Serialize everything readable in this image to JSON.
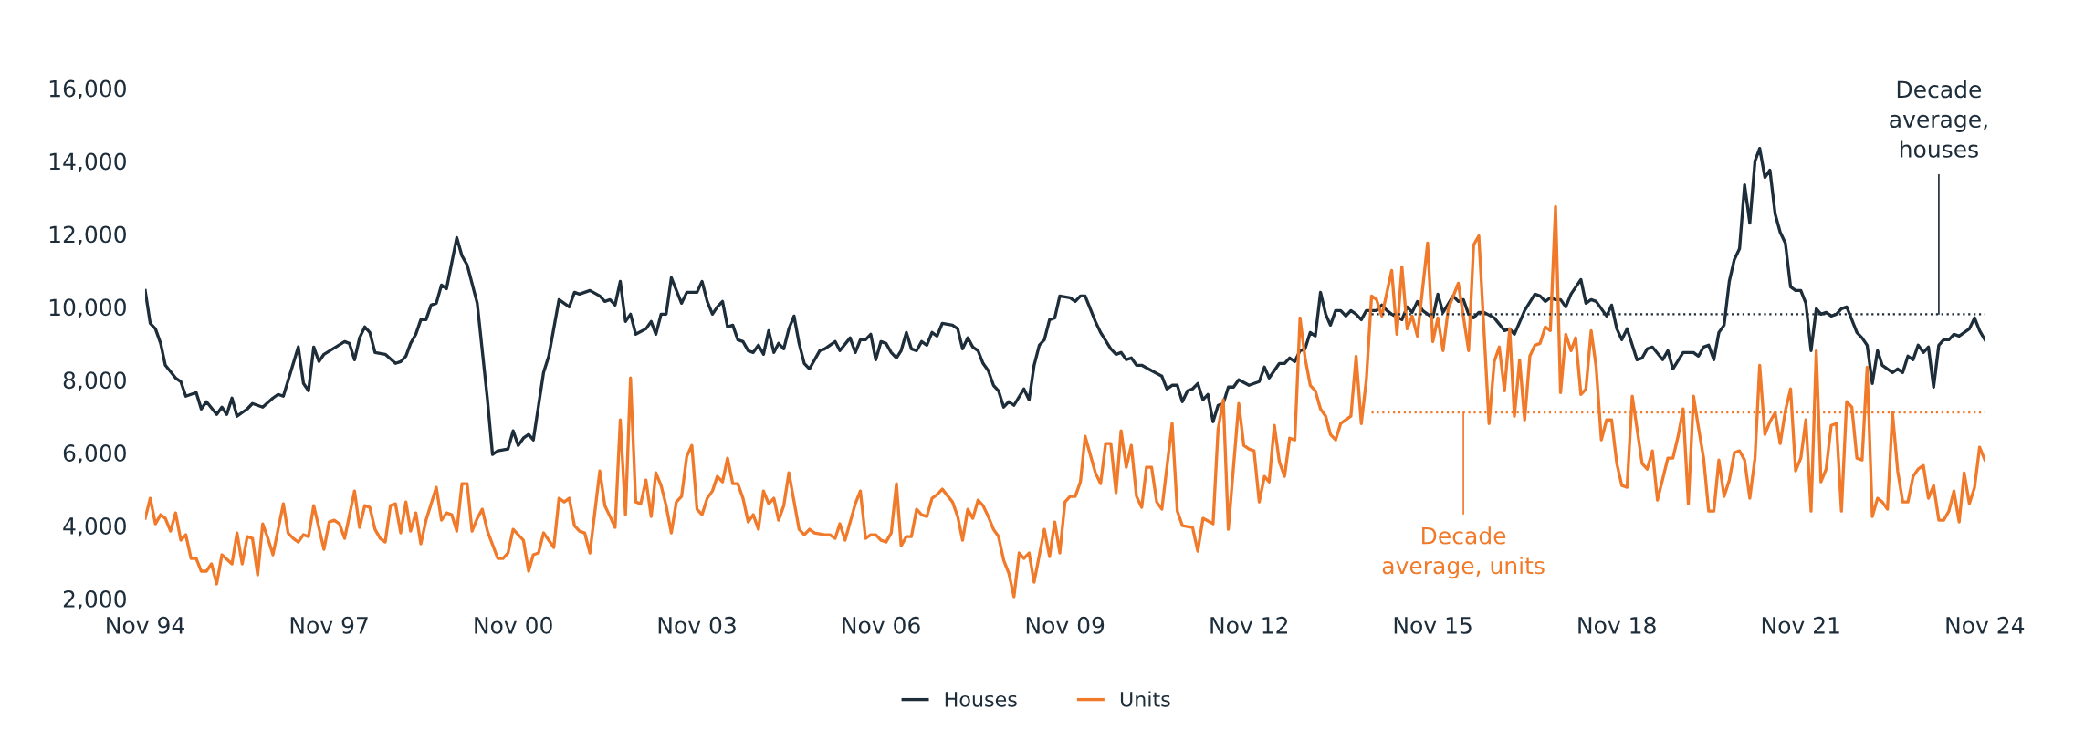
{
  "chart_data": {
    "type": "line",
    "xlim": [
      "1994-11",
      "2024-11"
    ],
    "xticks": [
      {
        "value": "1994-11",
        "label": "Nov 94"
      },
      {
        "value": "1997-11",
        "label": "Nov 97"
      },
      {
        "value": "2000-11",
        "label": "Nov 00"
      },
      {
        "value": "2003-11",
        "label": "Nov 03"
      },
      {
        "value": "2006-11",
        "label": "Nov 06"
      },
      {
        "value": "2009-11",
        "label": "Nov 09"
      },
      {
        "value": "2012-11",
        "label": "Nov 12"
      },
      {
        "value": "2015-11",
        "label": "Nov 15"
      },
      {
        "value": "2018-11",
        "label": "Nov 18"
      },
      {
        "value": "2021-11",
        "label": "Nov 21"
      },
      {
        "value": "2024-11",
        "label": "Nov 24"
      }
    ],
    "ylim": [
      2000,
      16000
    ],
    "yticks": [
      {
        "value": 2000,
        "label": "2,000"
      },
      {
        "value": 4000,
        "label": "4,000"
      },
      {
        "value": 6000,
        "label": "6,000"
      },
      {
        "value": 8000,
        "label": "8,000"
      },
      {
        "value": 10000,
        "label": "10,000"
      },
      {
        "value": 12000,
        "label": "12,000"
      },
      {
        "value": 14000,
        "label": "14,000"
      },
      {
        "value": 16000,
        "label": "16,000"
      }
    ],
    "grid": false,
    "legend": "bottom",
    "marker": "none",
    "series": [
      {
        "name": "Houses",
        "color": "#1d2d3a",
        "line_style": "solid",
        "x": [
          "1994-11",
          "1994-12",
          "1995-01",
          "1995-02",
          "1995-03",
          "1995-05",
          "1995-06",
          "1995-07",
          "1995-09",
          "1995-10",
          "1995-11",
          "1996-01",
          "1996-02",
          "1996-03",
          "1996-04",
          "1996-05",
          "1996-07",
          "1996-08",
          "1996-10",
          "1996-12",
          "1997-01",
          "1997-02",
          "1997-05",
          "1997-06",
          "1997-07",
          "1997-08",
          "1997-09",
          "1997-10",
          "1998-02",
          "1998-03",
          "1998-04",
          "1998-05",
          "1998-06",
          "1998-07",
          "1998-08",
          "1998-10",
          "1998-12",
          "1999-01",
          "1999-02",
          "1999-03",
          "1999-04",
          "1999-05",
          "1999-06",
          "1999-07",
          "1999-08",
          "1999-09",
          "1999-10",
          "1999-12",
          "2000-01",
          "2000-02",
          "2000-04",
          "2000-06",
          "2000-07",
          "2000-08",
          "2000-10",
          "2000-11",
          "2000-12",
          "2001-01",
          "2001-02",
          "2001-03",
          "2001-05",
          "2001-06",
          "2001-08",
          "2001-10",
          "2001-11",
          "2001-12",
          "2002-02",
          "2002-04",
          "2002-05",
          "2002-06",
          "2002-07",
          "2002-08",
          "2002-09",
          "2002-10",
          "2002-11",
          "2003-01",
          "2003-02",
          "2003-03",
          "2003-04",
          "2003-05",
          "2003-06",
          "2003-08",
          "2003-09",
          "2003-11",
          "2003-12",
          "2004-01",
          "2004-02",
          "2004-03",
          "2004-04",
          "2004-05",
          "2004-06",
          "2004-07",
          "2004-08",
          "2004-09",
          "2004-10",
          "2004-11",
          "2004-12",
          "2005-01",
          "2005-02",
          "2005-03",
          "2005-04",
          "2005-05",
          "2005-06",
          "2005-07",
          "2005-08",
          "2005-09",
          "2005-11",
          "2005-12",
          "2006-02",
          "2006-03",
          "2006-05",
          "2006-06",
          "2006-07",
          "2006-08",
          "2006-09",
          "2006-10",
          "2006-11",
          "2006-12",
          "2007-01",
          "2007-02",
          "2007-03",
          "2007-04",
          "2007-05",
          "2007-06",
          "2007-07",
          "2007-08",
          "2007-09",
          "2007-10",
          "2007-11",
          "2008-01",
          "2008-02",
          "2008-03",
          "2008-04",
          "2008-05",
          "2008-06",
          "2008-07",
          "2008-08",
          "2008-09",
          "2008-10",
          "2008-11",
          "2008-12",
          "2009-01",
          "2009-03",
          "2009-04",
          "2009-05",
          "2009-06",
          "2009-07",
          "2009-08",
          "2009-09",
          "2009-10",
          "2009-12",
          "2010-01",
          "2010-02",
          "2010-03",
          "2010-05",
          "2010-06",
          "2010-08",
          "2010-09",
          "2010-10",
          "2010-11",
          "2010-12",
          "2011-01",
          "2011-02",
          "2011-04",
          "2011-06",
          "2011-07",
          "2011-08",
          "2011-09",
          "2011-10",
          "2011-11",
          "2011-12",
          "2012-01",
          "2012-02",
          "2012-03",
          "2012-04",
          "2012-05",
          "2012-06",
          "2012-07",
          "2012-08",
          "2012-09",
          "2012-11",
          "2013-01",
          "2013-02",
          "2013-03",
          "2013-05",
          "2013-06",
          "2013-07",
          "2013-08",
          "2013-09",
          "2013-10",
          "2013-11",
          "2013-12",
          "2014-01",
          "2014-02",
          "2014-03",
          "2014-04",
          "2014-05",
          "2014-06",
          "2014-07",
          "2014-08",
          "2014-09",
          "2014-10",
          "2014-12",
          "2015-01",
          "2015-02",
          "2015-03",
          "2015-05",
          "2015-06",
          "2015-07",
          "2015-08",
          "2015-09",
          "2015-11",
          "2015-12",
          "2016-01",
          "2016-03",
          "2016-04",
          "2016-05",
          "2016-06",
          "2016-07",
          "2016-08",
          "2016-09",
          "2016-11",
          "2017-01",
          "2017-02",
          "2017-03",
          "2017-05",
          "2017-07",
          "2017-08",
          "2017-09",
          "2017-10",
          "2017-11",
          "2017-12",
          "2018-01",
          "2018-02",
          "2018-04",
          "2018-05",
          "2018-06",
          "2018-07",
          "2018-09",
          "2018-10",
          "2018-11",
          "2018-12",
          "2019-01",
          "2019-03",
          "2019-04",
          "2019-05",
          "2019-06",
          "2019-08",
          "2019-09",
          "2019-10",
          "2019-12",
          "2020-02",
          "2020-03",
          "2020-04",
          "2020-05",
          "2020-06",
          "2020-07",
          "2020-08",
          "2020-09",
          "2020-10",
          "2020-11",
          "2020-12",
          "2021-01",
          "2021-02",
          "2021-03",
          "2021-04",
          "2021-05",
          "2021-06",
          "2021-07",
          "2021-08",
          "2021-09",
          "2021-10",
          "2021-11",
          "2021-12",
          "2022-01",
          "2022-02",
          "2022-03",
          "2022-04",
          "2022-05",
          "2022-06",
          "2022-07",
          "2022-08",
          "2022-09",
          "2022-10",
          "2022-11",
          "2022-12",
          "2023-01",
          "2023-02",
          "2023-03",
          "2023-04",
          "2023-05",
          "2023-06",
          "2023-07",
          "2023-08",
          "2023-09",
          "2023-10",
          "2023-11",
          "2023-12",
          "2024-01",
          "2024-02",
          "2024-03",
          "2024-04",
          "2024-05",
          "2024-06",
          "2024-08",
          "2024-09",
          "2024-10",
          "2024-11"
        ],
        "values": [
          10450,
          9550,
          9400,
          9000,
          8400,
          8050,
          7950,
          7550,
          7650,
          7200,
          7400,
          7050,
          7250,
          7050,
          7500,
          7000,
          7200,
          7350,
          7250,
          7500,
          7600,
          7550,
          8900,
          7900,
          7700,
          8900,
          8500,
          8700,
          9050,
          9000,
          8550,
          9150,
          9450,
          9300,
          8750,
          8700,
          8450,
          8500,
          8650,
          9000,
          9250,
          9650,
          9650,
          10050,
          10100,
          10600,
          10500,
          11900,
          11400,
          11150,
          10100,
          7450,
          5950,
          6050,
          6100,
          6600,
          6200,
          6400,
          6500,
          6350,
          8200,
          8650,
          10200,
          10000,
          10400,
          10350,
          10450,
          10300,
          10150,
          10200,
          10050,
          10700,
          9600,
          9800,
          9250,
          9400,
          9600,
          9250,
          9800,
          9800,
          10800,
          10100,
          10400,
          10400,
          10700,
          10150,
          9800,
          10000,
          10150,
          9450,
          9500,
          9100,
          9050,
          8800,
          8750,
          8950,
          8700,
          9350,
          8750,
          9000,
          8850,
          9400,
          9750,
          9000,
          8450,
          8300,
          8800,
          8850,
          9050,
          8800,
          9150,
          8750,
          9100,
          9100,
          9250,
          8550,
          9050,
          9000,
          8750,
          8600,
          8800,
          9300,
          8850,
          8800,
          9050,
          8950,
          9300,
          9200,
          9550,
          9500,
          9400,
          8850,
          9150,
          8900,
          8800,
          8450,
          8250,
          7850,
          7700,
          7250,
          7400,
          7300,
          7750,
          7450,
          8400,
          8950,
          9100,
          9650,
          9700,
          10300,
          10250,
          10150,
          10300,
          10300,
          9600,
          9300,
          8850,
          8700,
          8750,
          8550,
          8600,
          8400,
          8400,
          8250,
          8100,
          7750,
          7850,
          7850,
          7400,
          7700,
          7750,
          7900,
          7450,
          7600,
          6850,
          7300,
          7350,
          7800,
          7800,
          8000,
          7850,
          7950,
          8350,
          8050,
          8450,
          8450,
          8600,
          8500,
          8800,
          8850,
          9300,
          9200,
          10400,
          9800,
          9500,
          9900,
          9900,
          9750,
          9900,
          9800,
          9650,
          9900,
          9900,
          10050,
          9900,
          9800,
          9650,
          10000,
          9850,
          10150,
          9900,
          9700,
          10350,
          9850,
          10300,
          10150,
          10200,
          9800,
          9700,
          9850,
          9850,
          9700,
          9350,
          9400,
          9250,
          9900,
          10350,
          10300,
          10150,
          10250,
          10200,
          10200,
          10000,
          10350,
          10750,
          10100,
          10200,
          10150,
          9750,
          10050,
          9400,
          9100,
          9400,
          8550,
          8600,
          8850,
          8900,
          8550,
          8800,
          8300,
          8750,
          8750,
          8650,
          8900,
          8950,
          8550,
          9300,
          9500,
          10700,
          11300,
          11600,
          13350,
          12300,
          14000,
          14350,
          13550,
          13750,
          12550,
          12050,
          11750,
          10550,
          10450,
          10450,
          10100,
          8800,
          9950,
          9800,
          9850,
          9750,
          9800,
          9950,
          10000,
          9650,
          9300,
          9150,
          8950,
          7900,
          8800,
          8400,
          8300,
          8200,
          8300,
          8200,
          8650,
          8550,
          8950,
          8750,
          8900,
          7800,
          8950,
          9100,
          9100,
          9250,
          9200,
          9400,
          9700,
          9350,
          9100
        ]
      },
      {
        "name": "Units",
        "color": "#f07a2a",
        "line_style": "solid",
        "x": [
          "1994-11",
          "1994-12",
          "1995-01",
          "1995-02",
          "1995-03",
          "1995-04",
          "1995-05",
          "1995-06",
          "1995-07",
          "1995-08",
          "1995-09",
          "1995-10",
          "1995-11",
          "1995-12",
          "1996-01",
          "1996-02",
          "1996-04",
          "1996-05",
          "1996-06",
          "1996-07",
          "1996-08",
          "1996-09",
          "1996-10",
          "1996-11",
          "1996-12",
          "1997-02",
          "1997-03",
          "1997-04",
          "1997-05",
          "1997-06",
          "1997-07",
          "1997-08",
          "1997-10",
          "1997-11",
          "1997-12",
          "1998-01",
          "1998-02",
          "1998-04",
          "1998-05",
          "1998-06",
          "1998-07",
          "1998-08",
          "1998-09",
          "1998-10",
          "1998-11",
          "1998-12",
          "1999-01",
          "1999-02",
          "1999-03",
          "1999-04",
          "1999-05",
          "1999-06",
          "1999-08",
          "1999-09",
          "1999-10",
          "1999-11",
          "1999-12",
          "2000-01",
          "2000-02",
          "2000-03",
          "2000-04",
          "2000-05",
          "2000-06",
          "2000-08",
          "2000-09",
          "2000-10",
          "2000-11",
          "2001-01",
          "2001-02",
          "2001-03",
          "2001-04",
          "2001-05",
          "2001-07",
          "2001-08",
          "2001-09",
          "2001-10",
          "2001-11",
          "2001-12",
          "2002-01",
          "2002-02",
          "2002-04",
          "2002-05",
          "2002-06",
          "2002-07",
          "2002-08",
          "2002-09",
          "2002-10",
          "2002-11",
          "2002-12",
          "2003-01",
          "2003-02",
          "2003-03",
          "2003-04",
          "2003-05",
          "2003-06",
          "2003-07",
          "2003-08",
          "2003-09",
          "2003-10",
          "2003-11",
          "2003-12",
          "2004-01",
          "2004-02",
          "2004-03",
          "2004-04",
          "2004-05",
          "2004-06",
          "2004-07",
          "2004-08",
          "2004-09",
          "2004-10",
          "2004-11",
          "2004-12",
          "2005-01",
          "2005-02",
          "2005-03",
          "2005-04",
          "2005-05",
          "2005-07",
          "2005-08",
          "2005-09",
          "2005-10",
          "2005-12",
          "2006-01",
          "2006-02",
          "2006-03",
          "2006-04",
          "2006-06",
          "2006-07",
          "2006-08",
          "2006-09",
          "2006-10",
          "2006-11",
          "2006-12",
          "2007-01",
          "2007-02",
          "2007-03",
          "2007-04",
          "2007-05",
          "2007-06",
          "2007-07",
          "2007-08",
          "2007-09",
          "2007-10",
          "2007-11",
          "2008-01",
          "2008-02",
          "2008-03",
          "2008-04",
          "2008-05",
          "2008-06",
          "2008-07",
          "2008-08",
          "2008-09",
          "2008-10",
          "2008-11",
          "2008-12",
          "2009-01",
          "2009-02",
          "2009-03",
          "2009-04",
          "2009-05",
          "2009-07",
          "2009-08",
          "2009-09",
          "2009-10",
          "2009-11",
          "2009-12",
          "2010-01",
          "2010-02",
          "2010-03",
          "2010-05",
          "2010-06",
          "2010-07",
          "2010-08",
          "2010-09",
          "2010-10",
          "2010-11",
          "2010-12",
          "2011-01",
          "2011-02",
          "2011-03",
          "2011-04",
          "2011-05",
          "2011-06",
          "2011-08",
          "2011-09",
          "2011-10",
          "2011-12",
          "2012-01",
          "2012-02",
          "2012-04",
          "2012-05",
          "2012-06",
          "2012-07",
          "2012-09",
          "2012-10",
          "2012-11",
          "2012-12",
          "2013-01",
          "2013-02",
          "2013-03",
          "2013-04",
          "2013-05",
          "2013-06",
          "2013-07",
          "2013-08",
          "2013-09",
          "2013-10",
          "2013-11",
          "2013-12",
          "2014-01",
          "2014-02",
          "2014-03",
          "2014-04",
          "2014-05",
          "2014-07",
          "2014-08",
          "2014-09",
          "2014-10",
          "2014-11",
          "2014-12",
          "2015-01",
          "2015-03",
          "2015-04",
          "2015-05",
          "2015-06",
          "2015-07",
          "2015-08",
          "2015-10",
          "2015-11",
          "2015-12",
          "2016-01",
          "2016-02",
          "2016-04",
          "2016-06",
          "2016-07",
          "2016-08",
          "2016-10",
          "2016-11",
          "2016-12",
          "2017-01",
          "2017-02",
          "2017-03",
          "2017-04",
          "2017-05",
          "2017-06",
          "2017-07",
          "2017-08",
          "2017-09",
          "2017-10",
          "2017-11",
          "2017-12",
          "2018-01",
          "2018-02",
          "2018-03",
          "2018-04",
          "2018-05",
          "2018-06",
          "2018-07",
          "2018-08",
          "2018-09",
          "2018-10",
          "2018-11",
          "2018-12",
          "2019-01",
          "2019-02",
          "2019-04",
          "2019-05",
          "2019-06",
          "2019-07",
          "2019-09",
          "2019-10",
          "2019-11",
          "2019-12",
          "2020-01",
          "2020-02",
          "2020-03",
          "2020-04",
          "2020-05",
          "2020-06",
          "2020-07",
          "2020-08",
          "2020-09",
          "2020-10",
          "2020-11",
          "2020-12",
          "2021-01",
          "2021-02",
          "2021-03",
          "2021-04",
          "2021-05",
          "2021-06",
          "2021-07",
          "2021-08",
          "2021-09",
          "2021-10",
          "2021-11",
          "2021-12",
          "2022-01",
          "2022-02",
          "2022-03",
          "2022-04",
          "2022-05",
          "2022-06",
          "2022-07",
          "2022-08",
          "2022-09",
          "2022-10",
          "2022-11",
          "2022-12",
          "2023-01",
          "2023-02",
          "2023-03",
          "2023-04",
          "2023-05",
          "2023-06",
          "2023-07",
          "2023-08",
          "2023-09",
          "2023-10",
          "2023-11",
          "2023-12",
          "2024-01",
          "2024-02",
          "2024-03",
          "2024-04",
          "2024-05",
          "2024-06",
          "2024-07",
          "2024-08",
          "2024-09",
          "2024-10",
          "2024-11"
        ],
        "values": [
          4200,
          4750,
          4050,
          4300,
          4200,
          3850,
          4350,
          3600,
          3750,
          3100,
          3100,
          2750,
          2750,
          2950,
          2400,
          3200,
          2950,
          3800,
          2950,
          3700,
          3650,
          2650,
          4050,
          3650,
          3200,
          4600,
          3800,
          3650,
          3550,
          3750,
          3700,
          4550,
          3350,
          4100,
          4150,
          4050,
          3650,
          4950,
          3950,
          4550,
          4500,
          3900,
          3650,
          3550,
          4550,
          4600,
          3800,
          4650,
          3850,
          4350,
          3500,
          4150,
          5050,
          4150,
          4350,
          4300,
          3850,
          5150,
          5150,
          3850,
          4200,
          4450,
          3850,
          3100,
          3100,
          3250,
          3900,
          3600,
          2750,
          3200,
          3250,
          3800,
          3400,
          4750,
          4650,
          4750,
          4000,
          3850,
          3800,
          3250,
          5500,
          4550,
          4250,
          3950,
          6900,
          4300,
          8050,
          4650,
          4600,
          5250,
          4250,
          5450,
          5100,
          4550,
          3800,
          4650,
          4800,
          5900,
          6200,
          4450,
          4300,
          4750,
          4950,
          5350,
          5200,
          5850,
          5150,
          5150,
          4750,
          4100,
          4300,
          3900,
          4950,
          4600,
          4750,
          4150,
          4550,
          5450,
          3900,
          3750,
          3900,
          3800,
          3750,
          3750,
          3650,
          4050,
          3600,
          4600,
          4950,
          3650,
          3750,
          3750,
          3600,
          3550,
          3800,
          5150,
          3450,
          3700,
          3700,
          4450,
          4300,
          4250,
          4750,
          4850,
          5000,
          4650,
          4250,
          3600,
          4450,
          4200,
          4700,
          4550,
          4250,
          3900,
          3700,
          3050,
          2700,
          2050,
          3250,
          3100,
          3250,
          2450,
          3900,
          3150,
          4100,
          3250,
          4650,
          4800,
          4800,
          5200,
          6450,
          5450,
          5150,
          6250,
          6250,
          4900,
          6600,
          5600,
          6200,
          4800,
          4500,
          5600,
          5600,
          4650,
          4450,
          6800,
          4400,
          4000,
          3950,
          3300,
          4200,
          4050,
          6650,
          7450,
          3900,
          7350,
          6200,
          6100,
          6050,
          4650,
          5350,
          5200,
          6750,
          5750,
          5350,
          6400,
          6350,
          9700,
          8600,
          7850,
          7700,
          7200,
          7000,
          6500,
          6350,
          6800,
          7000,
          8650,
          6800,
          8000,
          10300,
          10200,
          9750,
          11000,
          9250,
          11100,
          9400,
          9750,
          9200,
          11750,
          9050,
          9700,
          8800,
          9950,
          10650,
          8800,
          11700,
          11950,
          6800,
          8500,
          8900,
          7700,
          9400,
          7000,
          8550,
          6900,
          8650,
          8950,
          9000,
          9450,
          9350,
          12750,
          7650,
          9250,
          8800,
          9150,
          7600,
          7750,
          9350,
          8350,
          6350,
          6900,
          6900,
          5700,
          5100,
          5050,
          7550,
          5700,
          5550,
          6050,
          4700,
          5850,
          5850,
          6450,
          7200,
          4600,
          7550,
          6700,
          5850,
          4400,
          4400,
          5800,
          4800,
          5250,
          6000,
          6050,
          5800,
          4750,
          5850,
          8400,
          6500,
          6850,
          7100,
          6250,
          7150,
          7750,
          5500,
          5850,
          6900,
          4400,
          8800,
          5200,
          5550,
          6750,
          6800,
          4400,
          7400,
          7250,
          5850,
          5800,
          8350,
          4250,
          4750,
          4650,
          4450,
          7100,
          5500,
          4650,
          4650,
          5350,
          5550,
          5650,
          4750,
          5100,
          4150,
          4150,
          4400,
          4950,
          4100,
          5450,
          4600,
          5050,
          6150,
          5800
        ]
      },
      {
        "color": "#1d2d3a",
        "line_style": "dotted",
        "x": [
          "2014-11",
          "2024-11"
        ],
        "values": [
          9800,
          9800
        ]
      },
      {
        "color": "#f07a2a",
        "line_style": "dotted",
        "x": [
          "2014-11",
          "2024-11"
        ],
        "values": [
          7100,
          7100
        ]
      }
    ],
    "annotations": [
      {
        "text": "Decade\naverage,\nhouses",
        "x": "2024-02",
        "y": 9800
      },
      {
        "text": "Decade\naverage, units",
        "x": "2016-05",
        "y": 7100
      }
    ]
  }
}
